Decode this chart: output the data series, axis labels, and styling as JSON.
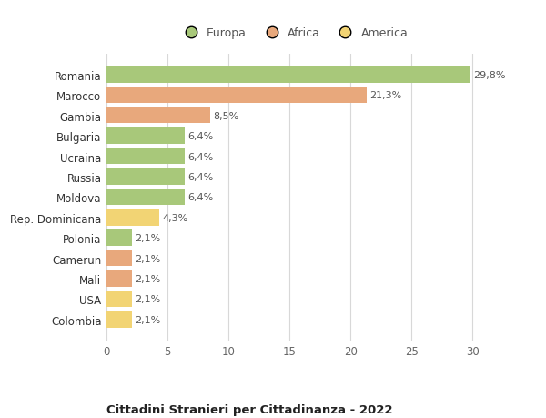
{
  "categories": [
    "Colombia",
    "USA",
    "Mali",
    "Camerun",
    "Polonia",
    "Rep. Dominicana",
    "Moldova",
    "Russia",
    "Ucraina",
    "Bulgaria",
    "Gambia",
    "Marocco",
    "Romania"
  ],
  "values": [
    2.1,
    2.1,
    2.1,
    2.1,
    2.1,
    4.3,
    6.4,
    6.4,
    6.4,
    6.4,
    8.5,
    21.3,
    29.8
  ],
  "labels": [
    "2,1%",
    "2,1%",
    "2,1%",
    "2,1%",
    "2,1%",
    "4,3%",
    "6,4%",
    "6,4%",
    "6,4%",
    "6,4%",
    "8,5%",
    "21,3%",
    "29,8%"
  ],
  "colors": [
    "#f2d474",
    "#f2d474",
    "#e8a87c",
    "#e8a87c",
    "#a8c87a",
    "#f2d474",
    "#a8c87a",
    "#a8c87a",
    "#a8c87a",
    "#a8c87a",
    "#e8a87c",
    "#e8a87c",
    "#a8c87a"
  ],
  "legend_labels": [
    "Europa",
    "Africa",
    "America"
  ],
  "legend_colors": [
    "#a8c87a",
    "#e8a87c",
    "#f2d474"
  ],
  "title": "Cittadini Stranieri per Cittadinanza - 2022",
  "xlim": [
    0,
    32
  ],
  "xticks": [
    0,
    5,
    10,
    15,
    20,
    25,
    30
  ],
  "bg_color": "#ffffff",
  "grid_color": "#d8d8d8",
  "bar_height": 0.78
}
